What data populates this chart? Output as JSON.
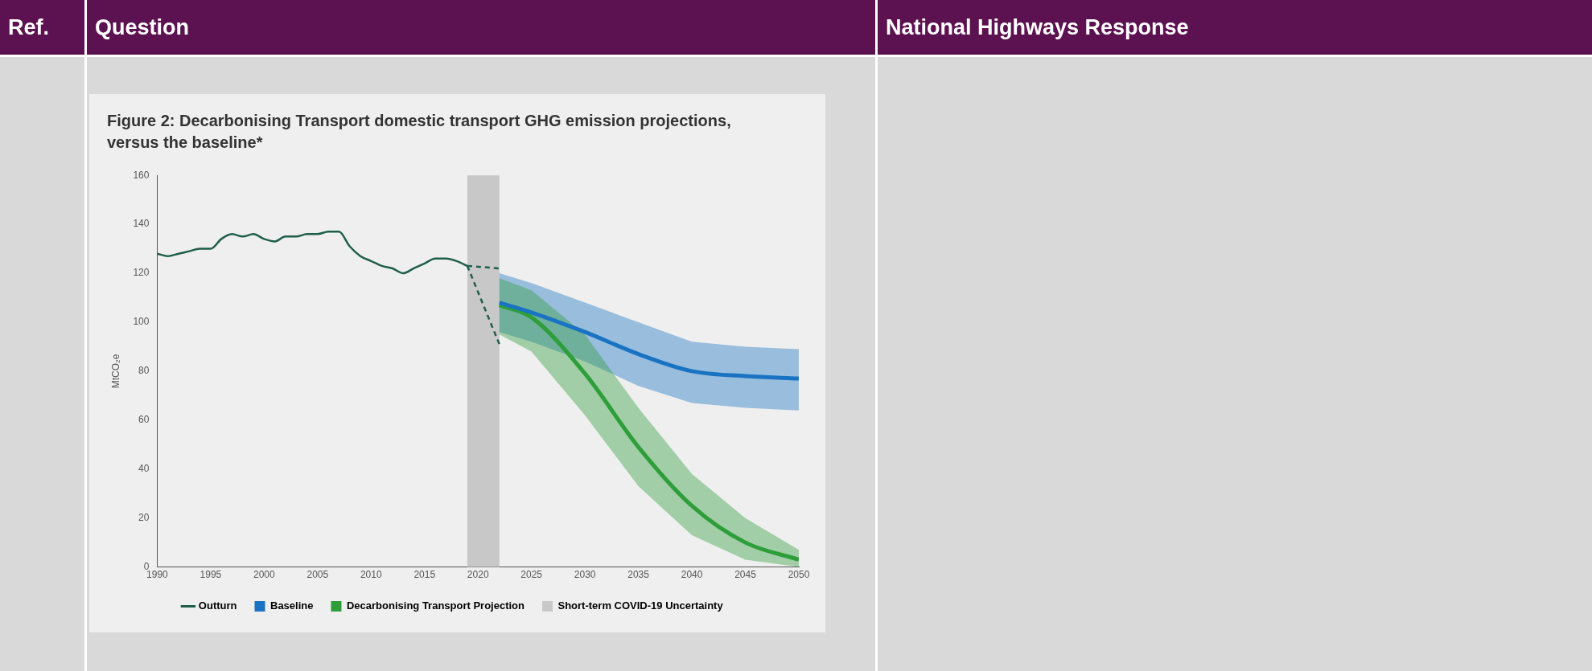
{
  "chart_data": {
    "type": "line",
    "title": "Figure 2: Decarbonising Transport domestic transport GHG emission projections, versus the baseline*",
    "ylabel": "MtCO₂e",
    "annotations": [
      "Ref.",
      "Question",
      "National Highways Response"
    ],
    "xlim": [
      1990,
      2050
    ],
    "xticks": [
      1990,
      1995,
      2000,
      2005,
      2010,
      2015,
      2020,
      2025,
      2030,
      2035,
      2040,
      2045,
      2050
    ],
    "ylim": [
      0,
      160
    ],
    "yticks": [
      0,
      20,
      40,
      60,
      80,
      100,
      120,
      140,
      160
    ],
    "grid": false,
    "legend": "bottom",
    "marker": "none",
    "series": [
      {
        "name": "Outturn",
        "color": "#1f5e4b",
        "x": [
          1990,
          1991,
          1992,
          1993,
          1994,
          1995,
          1996,
          1997,
          1998,
          1999,
          2000,
          2001,
          2002,
          2003,
          2004,
          2005,
          2006,
          2007,
          2008,
          2009,
          2010,
          2011,
          2012,
          2013,
          2014,
          2015,
          2016,
          2017,
          2018,
          2019
        ],
        "values": [
          128,
          127,
          128,
          129,
          130,
          130,
          134,
          136,
          135,
          136,
          134,
          133,
          135,
          135,
          136,
          136,
          137,
          137,
          131,
          127,
          125,
          123,
          122,
          120,
          122,
          124,
          126,
          126,
          125,
          123
        ]
      },
      {
        "name": "Baseline",
        "color": "#1a73c2",
        "x": [
          2022,
          2025,
          2030,
          2035,
          2040,
          2045,
          2050
        ],
        "values": [
          108,
          104,
          96,
          87,
          80,
          78,
          77
        ],
        "lower": [
          96,
          92,
          84,
          74,
          67,
          65,
          64
        ],
        "upper": [
          120,
          116,
          108,
          100,
          92,
          90,
          89
        ]
      },
      {
        "name": "Decarbonising Transport Projection",
        "color": "#2e9e3a",
        "x": [
          2022,
          2025,
          2030,
          2035,
          2040,
          2045,
          2050
        ],
        "values": [
          107,
          102,
          79,
          49,
          25,
          10,
          3
        ],
        "lower": [
          95,
          88,
          62,
          33,
          13,
          3,
          0
        ],
        "upper": [
          118,
          113,
          95,
          65,
          38,
          20,
          7
        ]
      },
      {
        "color": "#1f5e4b",
        "line_style": "dashed",
        "x": [
          2019,
          2022
        ],
        "values": [
          123,
          122
        ]
      },
      {
        "color": "#1f5e4b",
        "line_style": "dashed",
        "x": [
          2019,
          2022
        ],
        "values": [
          123,
          91
        ]
      }
    ],
    "bands": [
      {
        "axis": "x",
        "from": 2019,
        "to": 2022,
        "label": "Short-term COVID-19 Uncertainty",
        "color": "#c8c8c8"
      }
    ]
  }
}
